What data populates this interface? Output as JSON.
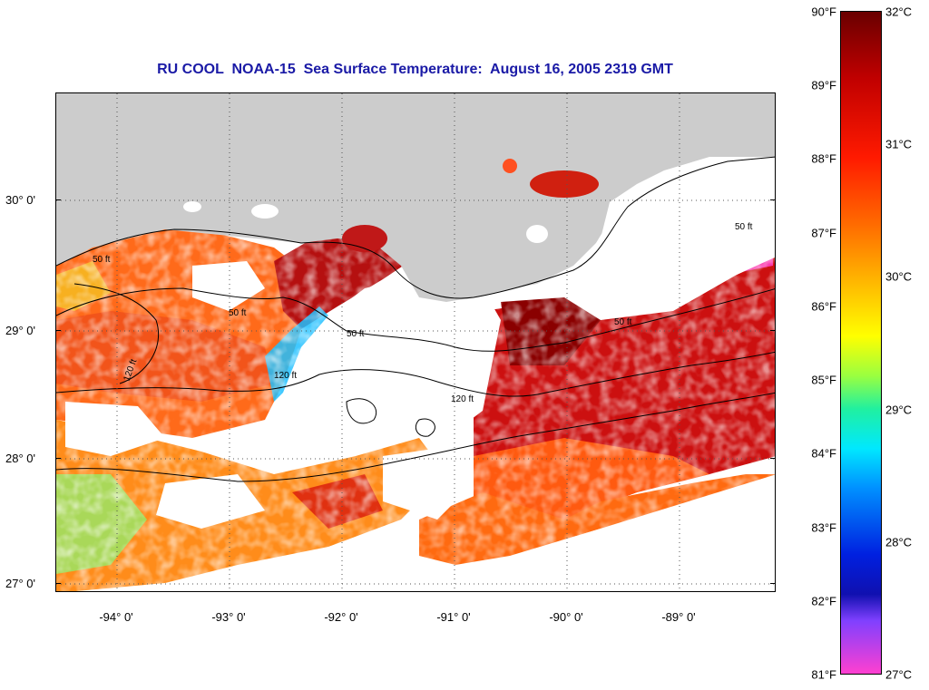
{
  "title": "RU COOL  NOAA-15  Sea Surface Temperature:  August 16, 2005 2319 GMT",
  "map": {
    "latitude_labels": [
      "30° 0'",
      "29° 0'",
      "28° 0'",
      "27° 0'"
    ],
    "longitude_labels": [
      "-94° 0'",
      "-93° 0'",
      "-92° 0'",
      "-91° 0'",
      "-90° 0'",
      "-89° 0'"
    ],
    "contour_labels": [
      "50 ft",
      "50 ft",
      "50 ft",
      "120 ft",
      "120 ft",
      "120 ft",
      "50 ft",
      "50 ft"
    ],
    "land_color": "#cccccc",
    "no_data_color": "#ffffff"
  },
  "colorbar": {
    "fahrenheit_labels": [
      "90°F",
      "89°F",
      "88°F",
      "87°F",
      "86°F",
      "85°F",
      "84°F",
      "83°F",
      "82°F",
      "81°F"
    ],
    "celsius_labels": [
      "32°C",
      "31°C",
      "30°C",
      "29°C",
      "28°C",
      "27°C"
    ],
    "fahrenheit_range": [
      81,
      90
    ],
    "celsius_range": [
      27,
      32
    ]
  }
}
